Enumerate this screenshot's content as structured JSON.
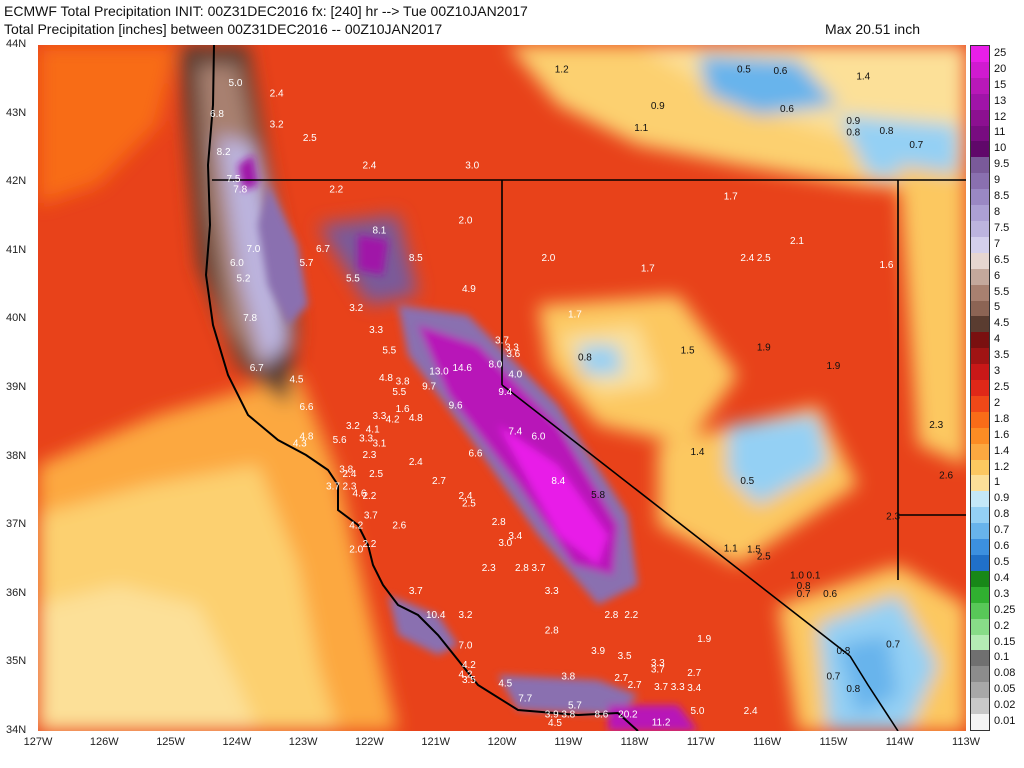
{
  "header": {
    "line1": "ECMWF Total Precipitation INIT: 00Z31DEC2016 fx: [240] hr --> Tue 00Z10JAN2017",
    "line2": "Total Precipitation [inches] between 00Z31DEC2016 -- 00Z10JAN2017",
    "max": "Max 20.51 inch"
  },
  "axes": {
    "lat_labels": [
      "44N",
      "43N",
      "42N",
      "41N",
      "40N",
      "39N",
      "38N",
      "37N",
      "36N",
      "35N",
      "34N"
    ],
    "lon_labels": [
      "127W",
      "126W",
      "125W",
      "124W",
      "123W",
      "122W",
      "121W",
      "120W",
      "119W",
      "118W",
      "117W",
      "116W",
      "115W",
      "114W",
      "113W"
    ]
  },
  "legend": {
    "labels": [
      "25",
      "20",
      "15",
      "13",
      "12",
      "11",
      "10",
      "9.5",
      "9",
      "8.5",
      "8",
      "7.5",
      "7",
      "6.5",
      "6",
      "5.5",
      "5",
      "4.5",
      "4",
      "3.5",
      "3",
      "2.5",
      "2",
      "1.8",
      "1.6",
      "1.4",
      "1.2",
      "1",
      "0.9",
      "0.8",
      "0.7",
      "0.6",
      "0.5",
      "0.4",
      "0.3",
      "0.25",
      "0.2",
      "0.15",
      "0.1",
      "0.08",
      "0.05",
      "0.02",
      "0.01"
    ],
    "colors": [
      "#e81ee8",
      "#d01ad0",
      "#b818b8",
      "#a014a8",
      "#8c1090",
      "#780c80",
      "#60086a",
      "#7a5a9a",
      "#8a70b0",
      "#9a88c4",
      "#aca0d4",
      "#bcb4de",
      "#d4d0ec",
      "#e6d6d0",
      "#c4a89c",
      "#a88070",
      "#8c6454",
      "#5a3c30",
      "#7a1010",
      "#a01414",
      "#c81818",
      "#e02818",
      "#f04818",
      "#f86c18",
      "#fc8c24",
      "#fca840",
      "#fcc860",
      "#fce098",
      "#c4e8f8",
      "#94d0f4",
      "#68b4ec",
      "#3c90e0",
      "#2070c8",
      "#188818",
      "#30b030",
      "#58c858",
      "#88dc88",
      "#b4ecb4",
      "#707070",
      "#8c8c8c",
      "#a8a8a8",
      "#c8c8c8",
      "#f4f4f4"
    ]
  },
  "map_labels": [
    {
      "t": "5.0",
      "lon": -124.02,
      "lat": 43.4
    },
    {
      "t": "2.4",
      "lon": -123.4,
      "lat": 43.25
    },
    {
      "t": "1.2",
      "lon": -119.1,
      "lat": 43.6
    },
    {
      "t": "0.9",
      "lon": -117.65,
      "lat": 43.07
    },
    {
      "t": "1.1",
      "lon": -117.9,
      "lat": 42.75
    },
    {
      "t": "0.5",
      "lon": -116.35,
      "lat": 43.6
    },
    {
      "t": "0.6",
      "lon": -115.8,
      "lat": 43.58
    },
    {
      "t": "1.4",
      "lon": -114.55,
      "lat": 43.5
    },
    {
      "t": "0.6",
      "lon": -115.7,
      "lat": 43.02
    },
    {
      "t": "0.9",
      "lon": -114.7,
      "lat": 42.85
    },
    {
      "t": "0.8",
      "lon": -114.7,
      "lat": 42.68
    },
    {
      "t": "0.8",
      "lon": -114.2,
      "lat": 42.7
    },
    {
      "t": "0.7",
      "lon": -113.75,
      "lat": 42.5
    },
    {
      "t": "6.8",
      "lon": -124.3,
      "lat": 42.95
    },
    {
      "t": "3.2",
      "lon": -123.4,
      "lat": 42.8
    },
    {
      "t": "2.5",
      "lon": -122.9,
      "lat": 42.6
    },
    {
      "t": "8.2",
      "lon": -124.2,
      "lat": 42.4
    },
    {
      "t": "7.5",
      "lon": -124.05,
      "lat": 42.0
    },
    {
      "t": "2.4",
      "lon": -122.0,
      "lat": 42.2
    },
    {
      "t": "3.0",
      "lon": -120.45,
      "lat": 42.2
    },
    {
      "t": "7.8",
      "lon": -123.95,
      "lat": 41.85
    },
    {
      "t": "2.2",
      "lon": -122.5,
      "lat": 41.85
    },
    {
      "t": "2.0",
      "lon": -120.55,
      "lat": 41.4
    },
    {
      "t": "1.7",
      "lon": -116.55,
      "lat": 41.75
    },
    {
      "t": "8.1",
      "lon": -121.85,
      "lat": 41.25
    },
    {
      "t": "2.1",
      "lon": -115.55,
      "lat": 41.1
    },
    {
      "t": "7.0",
      "lon": -123.75,
      "lat": 40.98
    },
    {
      "t": "6.7",
      "lon": -122.7,
      "lat": 40.98
    },
    {
      "t": "8.5",
      "lon": -121.3,
      "lat": 40.85
    },
    {
      "t": "2.0",
      "lon": -119.3,
      "lat": 40.85
    },
    {
      "t": "2.4",
      "lon": -116.3,
      "lat": 40.85
    },
    {
      "t": "2.5",
      "lon": -116.05,
      "lat": 40.85
    },
    {
      "t": "1.6",
      "lon": -114.2,
      "lat": 40.75
    },
    {
      "t": "6.0",
      "lon": -124.0,
      "lat": 40.78
    },
    {
      "t": "5.7",
      "lon": -122.95,
      "lat": 40.78
    },
    {
      "t": "1.7",
      "lon": -117.8,
      "lat": 40.7
    },
    {
      "t": "5.2",
      "lon": -123.9,
      "lat": 40.55
    },
    {
      "t": "5.5",
      "lon": -122.25,
      "lat": 40.55
    },
    {
      "t": "4.9",
      "lon": -120.5,
      "lat": 40.4
    },
    {
      "t": "7.8",
      "lon": -123.8,
      "lat": 39.98
    },
    {
      "t": "3.2",
      "lon": -122.2,
      "lat": 40.12
    },
    {
      "t": "1.7",
      "lon": -118.9,
      "lat": 40.03
    },
    {
      "t": "3.3",
      "lon": -121.9,
      "lat": 39.8
    },
    {
      "t": "3.7",
      "lon": -120.0,
      "lat": 39.65
    },
    {
      "t": "3.3",
      "lon": -119.85,
      "lat": 39.55
    },
    {
      "t": "5.5",
      "lon": -121.7,
      "lat": 39.5
    },
    {
      "t": "3.6",
      "lon": -119.83,
      "lat": 39.45
    },
    {
      "t": "1.5",
      "lon": -117.2,
      "lat": 39.5
    },
    {
      "t": "1.9",
      "lon": -116.05,
      "lat": 39.55
    },
    {
      "t": "0.8",
      "lon": -118.75,
      "lat": 39.4
    },
    {
      "t": "6.7",
      "lon": -123.7,
      "lat": 39.25
    },
    {
      "t": "13.0",
      "lon": -120.95,
      "lat": 39.2
    },
    {
      "t": "14.6",
      "lon": -120.6,
      "lat": 39.25
    },
    {
      "t": "8.0",
      "lon": -120.1,
      "lat": 39.3
    },
    {
      "t": "4.0",
      "lon": -119.8,
      "lat": 39.15
    },
    {
      "t": "1.9",
      "lon": -115.0,
      "lat": 39.28
    },
    {
      "t": "4.5",
      "lon": -123.1,
      "lat": 39.08
    },
    {
      "t": "4.8",
      "lon": -121.75,
      "lat": 39.1
    },
    {
      "t": "9.7",
      "lon": -121.1,
      "lat": 38.98
    },
    {
      "t": "9.4",
      "lon": -119.95,
      "lat": 38.9
    },
    {
      "t": "3.8",
      "lon": -121.5,
      "lat": 39.05
    },
    {
      "t": "5.5",
      "lon": -121.55,
      "lat": 38.9
    },
    {
      "t": "6.6",
      "lon": -122.95,
      "lat": 38.68
    },
    {
      "t": "9.6",
      "lon": -120.7,
      "lat": 38.7
    },
    {
      "t": "1.6",
      "lon": -121.5,
      "lat": 38.65
    },
    {
      "t": "3.3",
      "lon": -121.85,
      "lat": 38.55
    },
    {
      "t": "4.2",
      "lon": -121.65,
      "lat": 38.5
    },
    {
      "t": "4.8",
      "lon": -121.3,
      "lat": 38.52
    },
    {
      "t": "3.2",
      "lon": -122.25,
      "lat": 38.4
    },
    {
      "t": "4.1",
      "lon": -121.95,
      "lat": 38.35
    },
    {
      "t": "7.4",
      "lon": -119.8,
      "lat": 38.32
    },
    {
      "t": "6.0",
      "lon": -119.45,
      "lat": 38.25
    },
    {
      "t": "2.3",
      "lon": -113.45,
      "lat": 38.42
    },
    {
      "t": "4.8",
      "lon": -122.95,
      "lat": 38.25
    },
    {
      "t": "5.6",
      "lon": -122.45,
      "lat": 38.2
    },
    {
      "t": "3.3",
      "lon": -122.05,
      "lat": 38.22
    },
    {
      "t": "3.1",
      "lon": -121.85,
      "lat": 38.15
    },
    {
      "t": "4.3",
      "lon": -123.05,
      "lat": 38.15
    },
    {
      "t": "6.6",
      "lon": -120.4,
      "lat": 38.0
    },
    {
      "t": "2.3",
      "lon": -122.0,
      "lat": 37.98
    },
    {
      "t": "1.4",
      "lon": -117.05,
      "lat": 38.02
    },
    {
      "t": "2.4",
      "lon": -121.3,
      "lat": 37.88
    },
    {
      "t": "3.8",
      "lon": -122.35,
      "lat": 37.77
    },
    {
      "t": "2.4",
      "lon": -122.3,
      "lat": 37.7
    },
    {
      "t": "2.5",
      "lon": -121.9,
      "lat": 37.7
    },
    {
      "t": "2.7",
      "lon": -120.95,
      "lat": 37.6
    },
    {
      "t": "8.4",
      "lon": -119.15,
      "lat": 37.6
    },
    {
      "t": "0.5",
      "lon": -116.3,
      "lat": 37.6
    },
    {
      "t": "2.6",
      "lon": -113.3,
      "lat": 37.68
    },
    {
      "t": "3.7",
      "lon": -122.55,
      "lat": 37.52
    },
    {
      "t": "2.3",
      "lon": -122.3,
      "lat": 37.52
    },
    {
      "t": "4.6",
      "lon": -122.15,
      "lat": 37.42
    },
    {
      "t": "2.2",
      "lon": -122.0,
      "lat": 37.38
    },
    {
      "t": "2.4",
      "lon": -120.55,
      "lat": 37.38
    },
    {
      "t": "5.8",
      "lon": -118.55,
      "lat": 37.4
    },
    {
      "t": "2.5",
      "lon": -120.5,
      "lat": 37.27
    },
    {
      "t": "3.7",
      "lon": -121.98,
      "lat": 37.1
    },
    {
      "t": "4.2",
      "lon": -122.2,
      "lat": 36.95
    },
    {
      "t": "2.6",
      "lon": -121.55,
      "lat": 36.95
    },
    {
      "t": "2.8",
      "lon": -120.05,
      "lat": 37.0
    },
    {
      "t": "2.3",
      "lon": -114.1,
      "lat": 37.08
    },
    {
      "t": "2.2",
      "lon": -122.0,
      "lat": 36.68
    },
    {
      "t": "3.4",
      "lon": -119.8,
      "lat": 36.8
    },
    {
      "t": "3.0",
      "lon": -119.95,
      "lat": 36.7
    },
    {
      "t": "2.0",
      "lon": -122.2,
      "lat": 36.6
    },
    {
      "t": "1.1",
      "lon": -116.55,
      "lat": 36.62
    },
    {
      "t": "1.5",
      "lon": -116.2,
      "lat": 36.6
    },
    {
      "t": "2.5",
      "lon": -116.05,
      "lat": 36.5
    },
    {
      "t": "2.3",
      "lon": -120.2,
      "lat": 36.33
    },
    {
      "t": "2.8",
      "lon": -119.7,
      "lat": 36.33
    },
    {
      "t": "3.7",
      "lon": -119.45,
      "lat": 36.33
    },
    {
      "t": "1.0",
      "lon": -115.55,
      "lat": 36.22
    },
    {
      "t": "0.1",
      "lon": -115.3,
      "lat": 36.22
    },
    {
      "t": "0.8",
      "lon": -115.45,
      "lat": 36.07
    },
    {
      "t": "0.6",
      "lon": -115.05,
      "lat": 35.95
    },
    {
      "t": "0.7",
      "lon": -115.45,
      "lat": 35.95
    },
    {
      "t": "3.7",
      "lon": -121.3,
      "lat": 36.0
    },
    {
      "t": "3.3",
      "lon": -119.25,
      "lat": 36.0
    },
    {
      "t": "10.4",
      "lon": -121.0,
      "lat": 35.65
    },
    {
      "t": "3.2",
      "lon": -120.55,
      "lat": 35.65
    },
    {
      "t": "2.8",
      "lon": -118.35,
      "lat": 35.65
    },
    {
      "t": "2.2",
      "lon": -118.05,
      "lat": 35.65
    },
    {
      "t": "2.8",
      "lon": -119.25,
      "lat": 35.42
    },
    {
      "t": "1.9",
      "lon": -116.95,
      "lat": 35.3
    },
    {
      "t": "7.0",
      "lon": -120.55,
      "lat": 35.2
    },
    {
      "t": "0.8",
      "lon": -114.85,
      "lat": 35.12
    },
    {
      "t": "0.7",
      "lon": -114.1,
      "lat": 35.22
    },
    {
      "t": "3.9",
      "lon": -118.55,
      "lat": 35.12
    },
    {
      "t": "3.5",
      "lon": -118.15,
      "lat": 35.05
    },
    {
      "t": "3.3",
      "lon": -117.65,
      "lat": 34.95
    },
    {
      "t": "4.2",
      "lon": -120.5,
      "lat": 34.92
    },
    {
      "t": "3.7",
      "lon": -117.65,
      "lat": 34.85
    },
    {
      "t": "2.7",
      "lon": -117.1,
      "lat": 34.8
    },
    {
      "t": "4.2",
      "lon": -120.55,
      "lat": 34.78
    },
    {
      "t": "3.8",
      "lon": -119.0,
      "lat": 34.75
    },
    {
      "t": "2.7",
      "lon": -118.2,
      "lat": 34.73
    },
    {
      "t": "3.5",
      "lon": -120.5,
      "lat": 34.7
    },
    {
      "t": "4.5",
      "lon": -119.95,
      "lat": 34.65
    },
    {
      "t": "2.7",
      "lon": -118.0,
      "lat": 34.63
    },
    {
      "t": "3.7",
      "lon": -117.6,
      "lat": 34.6
    },
    {
      "t": "3.3",
      "lon": -117.35,
      "lat": 34.6
    },
    {
      "t": "3.4",
      "lon": -117.1,
      "lat": 34.58
    },
    {
      "t": "0.7",
      "lon": -115.0,
      "lat": 34.75
    },
    {
      "t": "0.8",
      "lon": -114.7,
      "lat": 34.57
    },
    {
      "t": "7.7",
      "lon": -119.65,
      "lat": 34.43
    },
    {
      "t": "5.7",
      "lon": -118.9,
      "lat": 34.33
    },
    {
      "t": "5.0",
      "lon": -117.05,
      "lat": 34.25
    },
    {
      "t": "2.4",
      "lon": -116.25,
      "lat": 34.25
    },
    {
      "t": "3.9",
      "lon": -119.25,
      "lat": 34.2
    },
    {
      "t": "3.8",
      "lon": -119.0,
      "lat": 34.2
    },
    {
      "t": "8.6",
      "lon": -118.5,
      "lat": 34.2
    },
    {
      "t": "20.2",
      "lon": -118.1,
      "lat": 34.2
    },
    {
      "t": "4.5",
      "lon": -119.2,
      "lat": 34.07
    },
    {
      "t": "11.2",
      "lon": -117.6,
      "lat": 34.08
    }
  ]
}
